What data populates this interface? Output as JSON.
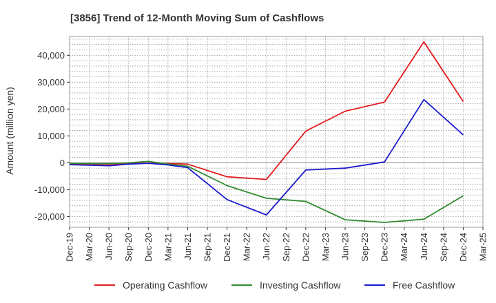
{
  "chart_data": {
    "type": "line",
    "title": "[3856]  Trend of 12-Month Moving Sum of Cashflows",
    "xlabel": "",
    "ylabel": "Amount (million yen)",
    "x": [
      "Dec-19",
      "Mar-20",
      "Jun-20",
      "Sep-20",
      "Dec-20",
      "Mar-21",
      "Jun-21",
      "Sep-21",
      "Dec-21",
      "Mar-22",
      "Jun-22",
      "Sep-22",
      "Dec-22",
      "Mar-23",
      "Jun-23",
      "Sep-23",
      "Dec-23",
      "Mar-24",
      "Jun-24",
      "Sep-24",
      "Dec-24",
      "Mar-25"
    ],
    "ylim": [
      -24000,
      47000
    ],
    "yticks": [
      -20000,
      -10000,
      0,
      10000,
      20000,
      30000,
      40000
    ],
    "ytick_labels": [
      "-20,000",
      "-10,000",
      "0",
      "10,000",
      "20,000",
      "30,000",
      "40,000"
    ],
    "grid": true,
    "legend_position": "bottom",
    "series": [
      {
        "name": "Operating Cashflow",
        "color": "#e31a1c",
        "values": [
          -500,
          -700,
          -800,
          -300,
          -100,
          -300,
          -500,
          null,
          -5200,
          null,
          -6200,
          null,
          11800,
          null,
          19200,
          null,
          22600,
          null,
          45000,
          null,
          22800,
          null
        ]
      },
      {
        "name": "Investing Cashflow",
        "color": "#2e8b2e",
        "values": [
          -200,
          -300,
          -300,
          0,
          500,
          -500,
          -1300,
          null,
          -8500,
          null,
          -13200,
          null,
          -14400,
          null,
          -21200,
          null,
          -22200,
          null,
          -21000,
          null,
          -12300,
          null
        ]
      },
      {
        "name": "Free Cashflow",
        "color": "#1a1acc",
        "values": [
          -700,
          -900,
          -1100,
          -500,
          -200,
          -800,
          -1800,
          null,
          -13700,
          null,
          -19400,
          null,
          -2700,
          null,
          -2000,
          null,
          300,
          null,
          23500,
          null,
          10400,
          null
        ]
      }
    ]
  }
}
